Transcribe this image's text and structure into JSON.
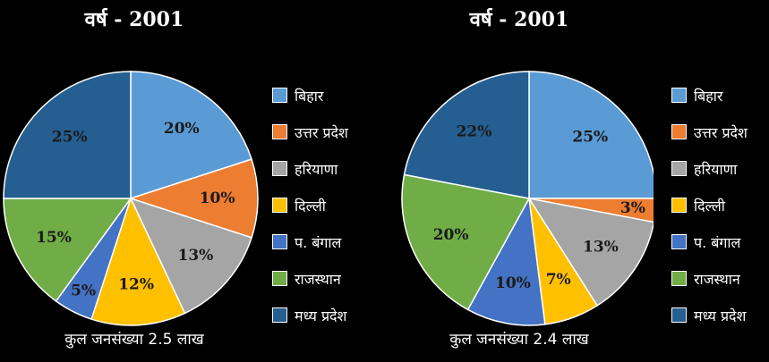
{
  "colors": {
    "background": "#000000",
    "bihar": "#5b9bd5",
    "uttar_pradesh": "#ed7d31",
    "haryana": "#a5a5a5",
    "delhi": "#ffc000",
    "west_bengal": "#4472c4",
    "rajasthan": "#70ad47",
    "madhya_pradesh": "#255e91"
  },
  "chart_data": [
    {
      "type": "pie",
      "title": "वर्ष - 2001",
      "categories": [
        "बिहार",
        "उत्तर प्रदेश",
        "हरियाणा",
        "दिल्ली",
        "प. बंगाल",
        "राजस्थान",
        "मध्य प्रदेश"
      ],
      "values": [
        20,
        10,
        13,
        12,
        5,
        15,
        25
      ],
      "value_labels": [
        "20%",
        "10%",
        "13%",
        "12%",
        "5%",
        "15%",
        "25%"
      ],
      "legend_position": "right",
      "note": "कुल जनसंख्या 2.5 लाख"
    },
    {
      "type": "pie",
      "title": "वर्ष - 2001",
      "categories": [
        "बिहार",
        "उत्तर प्रदेश",
        "हरियाणा",
        "दिल्ली",
        "प. बंगाल",
        "राजस्थान",
        "मध्य प्रदेश"
      ],
      "values": [
        25,
        3,
        13,
        7,
        10,
        20,
        22
      ],
      "value_labels": [
        "25%",
        "3%",
        "13%",
        "7%",
        "10%",
        "20%",
        "22%"
      ],
      "legend_position": "right",
      "note": "कुल जनसंख्या 2.4 लाख"
    }
  ]
}
